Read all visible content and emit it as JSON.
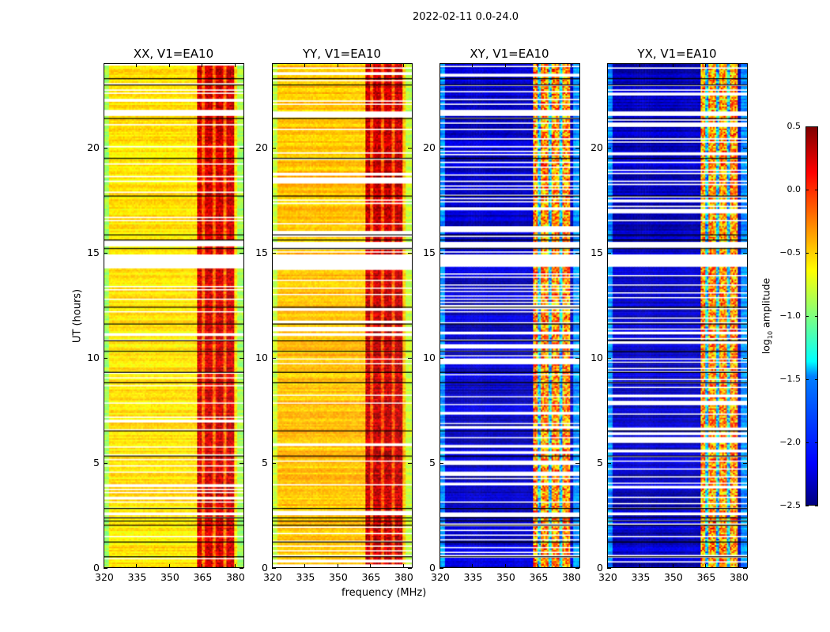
{
  "chart_data": {
    "type": "heatmap",
    "suptitle": "2022-02-11 0.0-24.0",
    "xlabel": "frequency (MHz)",
    "ylabel": "UT (hours)",
    "xlim": [
      320,
      384
    ],
    "ylim": [
      0,
      24
    ],
    "xticks": [
      "320",
      "335",
      "350",
      "365",
      "380"
    ],
    "xtick_values": [
      320,
      335,
      350,
      365,
      380
    ],
    "yticks": [
      "0",
      "5",
      "10",
      "15",
      "20"
    ],
    "ytick_values": [
      0,
      5,
      10,
      15,
      20
    ],
    "band_mhz": [
      363,
      380
    ],
    "subband_edges_mhz": [
      365.5,
      370.5,
      375.5
    ],
    "flagged_hours": [
      [
        2.45,
        2.65
      ],
      [
        15.3,
        15.5
      ],
      [
        21.55,
        21.75
      ],
      [
        14.3,
        14.9
      ]
    ],
    "black_line_hours": [
      0.5,
      1.2,
      2.0,
      2.2,
      2.35,
      2.8,
      5.3,
      6.5,
      8.8,
      9.3,
      10.3,
      10.8,
      11.6,
      12.4,
      15.2,
      15.6,
      15.85,
      17.7,
      19.5,
      21.4,
      23.0,
      23.3
    ],
    "panels": [
      {
        "title": "XX, V1=EA10",
        "offband_log_amp": -0.55,
        "inband_log_amp": 0.25
      },
      {
        "title": "YY, V1=EA10",
        "offband_log_amp": -0.45,
        "inband_log_amp": 0.3
      },
      {
        "title": "XY, V1=EA10",
        "offband_log_amp": -2.3,
        "inband_log_amp": -0.3
      },
      {
        "title": "YX, V1=EA10",
        "offband_log_amp": -2.3,
        "inband_log_amp": -0.3
      }
    ],
    "colorbar": {
      "label_prefix": "log",
      "label_sub": "10",
      "label_suffix": " amplitude",
      "range": [
        -2.5,
        0.5
      ],
      "ticks": [
        "0.5",
        "0.0",
        "−0.5",
        "−1.0",
        "−1.5",
        "−2.0",
        "−2.5"
      ],
      "tick_values": [
        0.5,
        0.0,
        -0.5,
        -1.0,
        -1.5,
        -2.0,
        -2.5
      ],
      "colormap": "jet"
    }
  }
}
